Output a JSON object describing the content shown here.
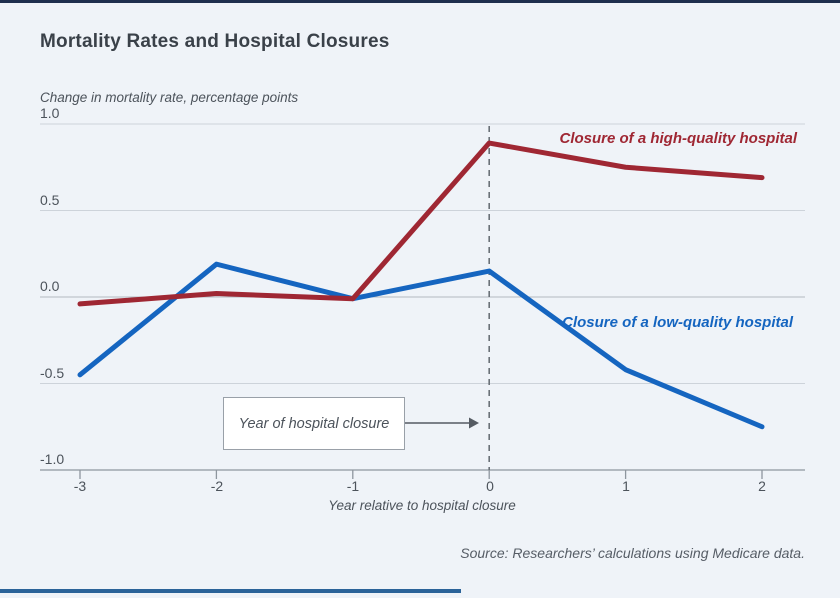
{
  "page": {
    "title": "Mortality Rates and Hospital Closures",
    "source_note": "Source: Researchers’ calculations using Medicare data.",
    "background_color": "#eff3f8",
    "top_accent_bar_color": "#1e2f4e",
    "bottom_accent_bar_color": "#2b6399"
  },
  "chart_data": {
    "type": "line",
    "title": "Mortality Rates and Hospital Closures",
    "ylabel": "Change in mortality rate, percentage points",
    "xlabel": "Year relative to hospital closure",
    "x": [
      -3,
      -2,
      -1,
      0,
      1,
      2
    ],
    "xtick_labels": [
      "-3",
      "-2",
      "-1",
      "0",
      "1",
      "2"
    ],
    "yticks": [
      1.0,
      0.5,
      0.0,
      -0.5,
      -1.0
    ],
    "ytick_labels": [
      "1.0",
      "0.5",
      "0.0",
      "-0.5",
      "-1.0"
    ],
    "ylim": [
      -1.0,
      1.0
    ],
    "xlim": [
      -3,
      2
    ],
    "grid": true,
    "legend_position": "inline-labels",
    "series": [
      {
        "name": "Closure of a high-quality hospital",
        "color": "#9f2733",
        "values": [
          -0.04,
          0.02,
          -0.01,
          0.89,
          0.75,
          0.69
        ]
      },
      {
        "name": "Closure of a low-quality hospital",
        "color": "#1565c0",
        "values": [
          -0.45,
          0.19,
          -0.01,
          0.15,
          -0.42,
          -0.75
        ]
      }
    ],
    "reference_line": {
      "x": 0,
      "style": "dashed",
      "color": "#6a7178"
    },
    "annotation": {
      "text": "Year of hospital closure",
      "points_to": "reference_line"
    },
    "gridline_color": "#cdd3da",
    "zero_line_color": "#b3b9c1",
    "axis_line_color": "#8e969e"
  }
}
